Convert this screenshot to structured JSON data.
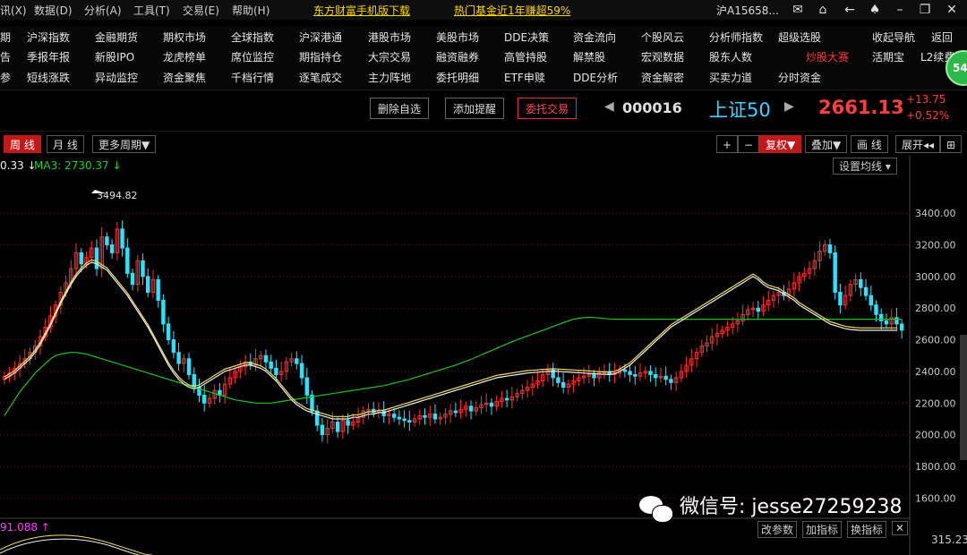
{
  "menu": [
    "讯(X)",
    "数据(D)",
    "分析(A)",
    "工具(T)",
    "交易(E)",
    "帮助(H)"
  ],
  "promos": [
    "东方财富手机版下载",
    "热门基金近1年赚超59%"
  ],
  "account": "沪A15658...",
  "nav_row1": [
    "期",
    "沪深指数",
    "金融期货",
    "期权市场",
    "全球指数",
    "沪深港通",
    "港股市场",
    "美股市场",
    "DDE决策",
    "资金流向",
    "个股风云",
    "分析师指数",
    "超级选股",
    "收起导航",
    "返回"
  ],
  "nav_row2": [
    "告",
    "季报年报",
    "新股IPO",
    "龙虎榜单",
    "席位监控",
    "期指持仓",
    "大宗交易",
    "融资融券",
    "高管持股",
    "解禁股",
    "宏观数据",
    "股东人数",
    "炒股大赛",
    "活期宝",
    "L2续费"
  ],
  "nav_row3": [
    "参",
    "短线涨跌",
    "异动监控",
    "资金聚焦",
    "千档行情",
    "逐笔成交",
    "主力阵地",
    "委托明细",
    "ETF申赎",
    "DDE分析",
    "资金解密",
    "买卖力道",
    "分时资金"
  ],
  "side_badge": "54",
  "buttons": {
    "delete": "删除自选",
    "alert": "添加提醒",
    "trade": "委托交易"
  },
  "stock": {
    "code": "000016",
    "name": "上证50",
    "price": "2661.13",
    "change": "+13.75",
    "pct": "+0.52%"
  },
  "tabs": {
    "week": "周 线",
    "month": "月 线",
    "more": "更多周期▼"
  },
  "tools": {
    "plus": "+",
    "minus": "−",
    "fuquan": "复权▼",
    "overlay": "叠加▼",
    "draw": "画 线",
    "expand": "展开◂◂",
    "grid": "⊞"
  },
  "ma_labels": {
    "ma_prev": "0.33 ↓",
    "ma3": "MA3: 2730.37 ↓"
  },
  "settings": "设置均线 ▾",
  "peak_label": "3494.82",
  "sub_label": "91.088 ↑",
  "sub_buttons": [
    "改参数",
    "加指标",
    "换指标",
    "✕"
  ],
  "sub_value": "315.23",
  "watermark": "微信号: jesse27259238",
  "colors": {
    "up": "#ff3030",
    "down": "#30e0ff",
    "ma_white": "#f0f0f0",
    "ma_yellow": "#f0e060",
    "ma_green": "#20c020"
  },
  "chart_data": {
    "type": "candlestick",
    "ylim": [
      1500,
      3650
    ],
    "yticks": [
      1600,
      1800,
      2000,
      2200,
      2400,
      2600,
      2800,
      3000,
      3200,
      3400
    ],
    "ytick_labels": [
      "1600.00",
      "1800.00",
      "2000.00",
      "2200.00",
      "2400.00",
      "2600.00",
      "2800.00",
      "3000.00",
      "3200.00",
      "3400.00"
    ],
    "closes": [
      2370,
      2390,
      2420,
      2450,
      2480,
      2520,
      2560,
      2620,
      2680,
      2750,
      2820,
      2900,
      2960,
      3050,
      3150,
      3080,
      3120,
      3180,
      3050,
      3250,
      3200,
      3150,
      3300,
      3180,
      3020,
      2950,
      3100,
      3000,
      2900,
      2980,
      2850,
      2700,
      2600,
      2520,
      2450,
      2480,
      2380,
      2300,
      2250,
      2200,
      2230,
      2280,
      2250,
      2320,
      2360,
      2400,
      2430,
      2460,
      2440,
      2480,
      2500,
      2460,
      2420,
      2380,
      2400,
      2460,
      2480,
      2450,
      2360,
      2250,
      2150,
      2060,
      2000,
      2040,
      2080,
      2020,
      2090,
      2060,
      2080,
      2110,
      2150,
      2160,
      2140,
      2150,
      2120,
      2130,
      2110,
      2100,
      2090,
      2080,
      2100,
      2120,
      2110,
      2130,
      2100,
      2110,
      2130,
      2150,
      2140,
      2160,
      2180,
      2150,
      2170,
      2190,
      2200,
      2180,
      2210,
      2230,
      2220,
      2240,
      2260,
      2280,
      2300,
      2320,
      2340,
      2380,
      2410,
      2360,
      2330,
      2300,
      2320,
      2340,
      2360,
      2370,
      2380,
      2360,
      2390,
      2400,
      2380,
      2390,
      2410,
      2400,
      2380,
      2370,
      2390,
      2400,
      2380,
      2360,
      2370,
      2350,
      2330,
      2360,
      2400,
      2440,
      2480,
      2520,
      2560,
      2580,
      2620,
      2640,
      2660,
      2680,
      2700,
      2720,
      2760,
      2790,
      2800,
      2780,
      2820,
      2850,
      2880,
      2900,
      2880,
      2920,
      2960,
      3000,
      3020,
      3050,
      3100,
      3160,
      3200,
      3150,
      2900,
      2820,
      2880,
      2950,
      2980,
      2930,
      2880,
      2820,
      2760,
      2720,
      2700,
      2740,
      2700,
      2661
    ],
    "ma_white": [
      2350,
      2370,
      2390,
      2420,
      2450,
      2480,
      2520,
      2570,
      2630,
      2690,
      2760,
      2830,
      2890,
      2950,
      3000,
      3040,
      3070,
      3090,
      3080,
      3060,
      3040,
      3000,
      2960,
      2920,
      2880,
      2830,
      2780,
      2730,
      2680,
      2620,
      2560,
      2500,
      2440,
      2390,
      2350,
      2320,
      2300,
      2290,
      2300,
      2320,
      2340,
      2360,
      2380,
      2400,
      2410,
      2420,
      2430,
      2440,
      2440,
      2430,
      2420,
      2400,
      2370,
      2340,
      2300,
      2260,
      2220,
      2190,
      2170,
      2150,
      2140,
      2130,
      2120,
      2110,
      2100,
      2100,
      2100,
      2100,
      2110,
      2110,
      2120,
      2130,
      2130,
      2140,
      2140,
      2150,
      2160,
      2170,
      2180,
      2190,
      2200,
      2210,
      2220,
      2230,
      2240,
      2250,
      2260,
      2270,
      2280,
      2290,
      2300,
      2310,
      2320,
      2330,
      2340,
      2350,
      2360,
      2365,
      2370,
      2375,
      2380,
      2385,
      2390,
      2392,
      2395,
      2398,
      2400,
      2402,
      2400,
      2398,
      2396,
      2394,
      2392,
      2390,
      2388,
      2386,
      2384,
      2382,
      2380,
      2385,
      2400,
      2420,
      2440,
      2470,
      2500,
      2530,
      2560,
      2590,
      2620,
      2650,
      2680,
      2700,
      2720,
      2740,
      2760,
      2780,
      2800,
      2820,
      2840,
      2860,
      2880,
      2900,
      2920,
      2940,
      2960,
      2980,
      3000,
      2980,
      2950,
      2930,
      2920,
      2910,
      2890,
      2870,
      2850,
      2820,
      2800,
      2780,
      2760,
      2740,
      2720,
      2700,
      2690,
      2680,
      2670,
      2665,
      2662,
      2660,
      2660,
      2660,
      2660,
      2660,
      2660,
      2660,
      2660
    ],
    "ma_green": [
      2120,
      2170,
      2220,
      2270,
      2310,
      2350,
      2390,
      2420,
      2450,
      2480,
      2500,
      2510,
      2515,
      2520,
      2520,
      2515,
      2510,
      2500,
      2490,
      2480,
      2470,
      2460,
      2450,
      2440,
      2430,
      2420,
      2410,
      2400,
      2390,
      2380,
      2370,
      2360,
      2350,
      2340,
      2330,
      2320,
      2310,
      2300,
      2290,
      2280,
      2270,
      2260,
      2250,
      2240,
      2230,
      2220,
      2215,
      2210,
      2205,
      2200,
      2200,
      2200,
      2200,
      2205,
      2210,
      2215,
      2220,
      2225,
      2230,
      2235,
      2240,
      2245,
      2250,
      2255,
      2260,
      2265,
      2270,
      2275,
      2280,
      2285,
      2290,
      2295,
      2300,
      2305,
      2310,
      2318,
      2326,
      2334,
      2342,
      2350,
      2360,
      2370,
      2380,
      2390,
      2400,
      2410,
      2420,
      2430,
      2440,
      2452,
      2464,
      2476,
      2490,
      2504,
      2518,
      2532,
      2546,
      2560,
      2574,
      2588,
      2600,
      2612,
      2624,
      2636,
      2648,
      2660,
      2672,
      2684,
      2696,
      2708,
      2720,
      2730,
      2736,
      2740,
      2742,
      2740,
      2738,
      2735,
      2732,
      2730,
      2730,
      2730,
      2730,
      2730,
      2730,
      2730,
      2730,
      2730,
      2730,
      2730,
      2730,
      2730,
      2730,
      2730,
      2730,
      2730,
      2730,
      2730,
      2730,
      2730,
      2730,
      2730,
      2730,
      2730,
      2730,
      2730,
      2730,
      2730,
      2730,
      2730,
      2730,
      2730,
      2730,
      2730,
      2730,
      2730,
      2730,
      2730,
      2730,
      2730,
      2730,
      2730,
      2730,
      2730,
      2730,
      2730,
      2730,
      2730,
      2730,
      2730,
      2730,
      2730,
      2730,
      2730,
      2730,
      2730,
      2730,
      2730,
      2730
    ]
  }
}
